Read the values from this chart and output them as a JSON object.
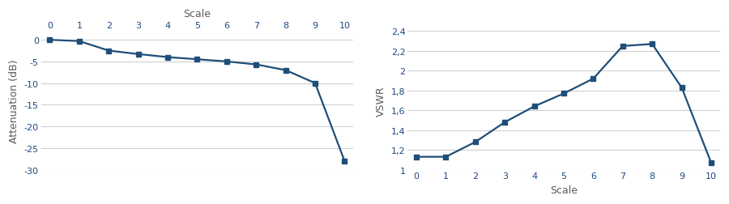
{
  "atten_x": [
    0,
    1,
    2,
    3,
    4,
    5,
    6,
    7,
    8,
    9,
    10
  ],
  "atten_y": [
    0.0,
    -0.3,
    -2.5,
    -3.3,
    -4.0,
    -4.5,
    -5.0,
    -5.7,
    -7.0,
    -10.0,
    -28.0
  ],
  "vswr_x": [
    0,
    1,
    2,
    3,
    4,
    5,
    6,
    7,
    8,
    9,
    10
  ],
  "vswr_y": [
    1.13,
    1.13,
    1.28,
    1.48,
    1.64,
    1.77,
    1.92,
    2.25,
    2.27,
    1.83,
    1.07
  ],
  "line_color": "#1F4E79",
  "marker": "s",
  "marker_size": 4,
  "line_width": 1.6,
  "atten_ylabel": "Attenuation (dB)",
  "vswr_ylabel": "VSWR",
  "xlabel": "Scale",
  "atten_ylim": [
    -30,
    2
  ],
  "atten_yticks": [
    0,
    -5,
    -10,
    -15,
    -20,
    -25,
    -30
  ],
  "vswr_ylim": [
    1.0,
    2.4
  ],
  "vswr_yticks": [
    1.0,
    1.2,
    1.4,
    1.6,
    1.8,
    2.0,
    2.2,
    2.4
  ],
  "xlim": [
    -0.3,
    10.3
  ],
  "xticks": [
    0,
    1,
    2,
    3,
    4,
    5,
    6,
    7,
    8,
    9,
    10
  ],
  "bg_color": "#ffffff",
  "grid_color": "#d0d0d0",
  "tick_label_color": "#1F497D",
  "axis_label_color": "#595959",
  "fig_width": 9.0,
  "fig_height": 2.53
}
